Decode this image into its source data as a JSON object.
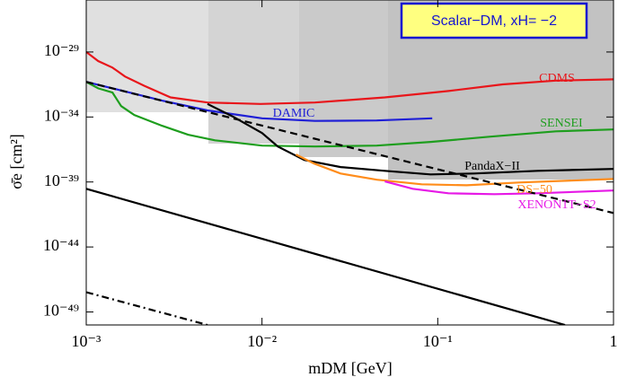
{
  "chart_data": {
    "type": "line",
    "annotation": "Scalar−DM, xH= −2",
    "xlabel": "mDM [GeV]",
    "ylabel": "σ̄e [cm²]",
    "xlog": true,
    "ylog": true,
    "xlim": [
      0.001,
      1
    ],
    "ylim": [
      1e-50,
      1e-25
    ],
    "xticks": [
      {
        "value": 0.001,
        "label": "10⁻³"
      },
      {
        "value": 0.01,
        "label": "10⁻²"
      },
      {
        "value": 0.1,
        "label": "10⁻¹"
      },
      1
    ],
    "yticks": [
      {
        "value": 1e-29,
        "label": "10⁻²⁹"
      },
      {
        "value": 1e-34,
        "label": "10⁻³⁴"
      },
      {
        "value": 1e-39,
        "label": "10⁻³⁹"
      },
      {
        "value": 1e-44,
        "label": "10⁻⁴⁴"
      },
      {
        "value": 1e-49,
        "label": "10⁻⁴⁹"
      }
    ],
    "series": [
      {
        "name": "CDMS",
        "color": "#e8161b",
        "linestyle": "solid",
        "x": [
          0.001,
          0.00117,
          0.00141,
          0.00166,
          0.00214,
          0.00302,
          0.0049,
          0.0098,
          0.02,
          0.05,
          0.115,
          0.234,
          0.468,
          1
        ],
        "values": [
          1e-29,
          2e-30,
          6.3e-31,
          1.3e-31,
          2.5e-32,
          3.2e-33,
          1.3e-33,
          1e-33,
          1.3e-33,
          3.2e-33,
          1e-32,
          3.2e-32,
          6.3e-32,
          7.9e-32
        ]
      },
      {
        "name": "DAMIC",
        "color": "#1f1fd6",
        "linestyle": "solid",
        "x": [
          0.001,
          0.0015,
          0.0027,
          0.0049,
          0.01,
          0.02,
          0.045,
          0.093
        ],
        "values": [
          5e-32,
          1.3e-32,
          1.8e-33,
          3.2e-34,
          7.9e-35,
          5e-35,
          5.4e-35,
          7.9e-35
        ]
      },
      {
        "name": "SENSEI",
        "color": "#1e9e1e",
        "linestyle": "solid",
        "x": [
          0.001,
          0.00117,
          0.00141,
          0.00158,
          0.00188,
          0.0027,
          0.0038,
          0.0054,
          0.01,
          0.02,
          0.045,
          0.091,
          0.2,
          0.47,
          1
        ],
        "values": [
          5e-32,
          1.6e-32,
          7.6e-33,
          6.9e-34,
          1.4e-34,
          2.1e-35,
          4.3e-36,
          1.6e-36,
          6.3e-37,
          5.4e-37,
          6.3e-37,
          1.2e-36,
          3.1e-36,
          7.9e-36,
          1.1e-35
        ]
      },
      {
        "name": "PandaX−II",
        "color": "#000000",
        "linestyle": "solid",
        "x": [
          0.0049,
          0.0069,
          0.01,
          0.0123,
          0.0174,
          0.028,
          0.05,
          0.091,
          0.16,
          0.37,
          1
        ],
        "values": [
          1e-33,
          1e-34,
          5.8e-36,
          5.4e-37,
          4.9e-38,
          1.4e-38,
          7.2e-39,
          3.8e-39,
          4.5e-39,
          7.2e-39,
          1e-38
        ]
      },
      {
        "name": "DS−50",
        "color": "#ff8c1a",
        "linestyle": "solid",
        "x": [
          0.0156,
          0.0198,
          0.028,
          0.045,
          0.081,
          0.146,
          0.29,
          1
        ],
        "values": [
          1.3e-37,
          2.6e-38,
          4.5e-39,
          1.5e-39,
          6.6e-40,
          5.6e-40,
          9.1e-40,
          1.7e-39
        ]
      },
      {
        "name": "XENON1T−S2",
        "color": "#e619e6",
        "linestyle": "solid",
        "x": [
          0.05,
          0.072,
          0.115,
          0.21,
          0.37,
          1
        ],
        "values": [
          1.1e-39,
          3e-40,
          1.35e-40,
          1.15e-40,
          1.35e-40,
          2.2e-40
        ]
      },
      {
        "color": "#000000",
        "linestyle": "dashed",
        "x": [
          0.001,
          1
        ],
        "values": [
          5e-32,
          4.1e-42
        ]
      },
      {
        "color": "#000000",
        "linestyle": "solid",
        "x": [
          0.001,
          0.53
        ],
        "values": [
          3e-40,
          1e-50
        ]
      },
      {
        "color": "#000000",
        "linestyle": "dashdot",
        "x": [
          0.001,
          0.0049
        ],
        "values": [
          3.3e-48,
          1e-50
        ]
      }
    ]
  }
}
